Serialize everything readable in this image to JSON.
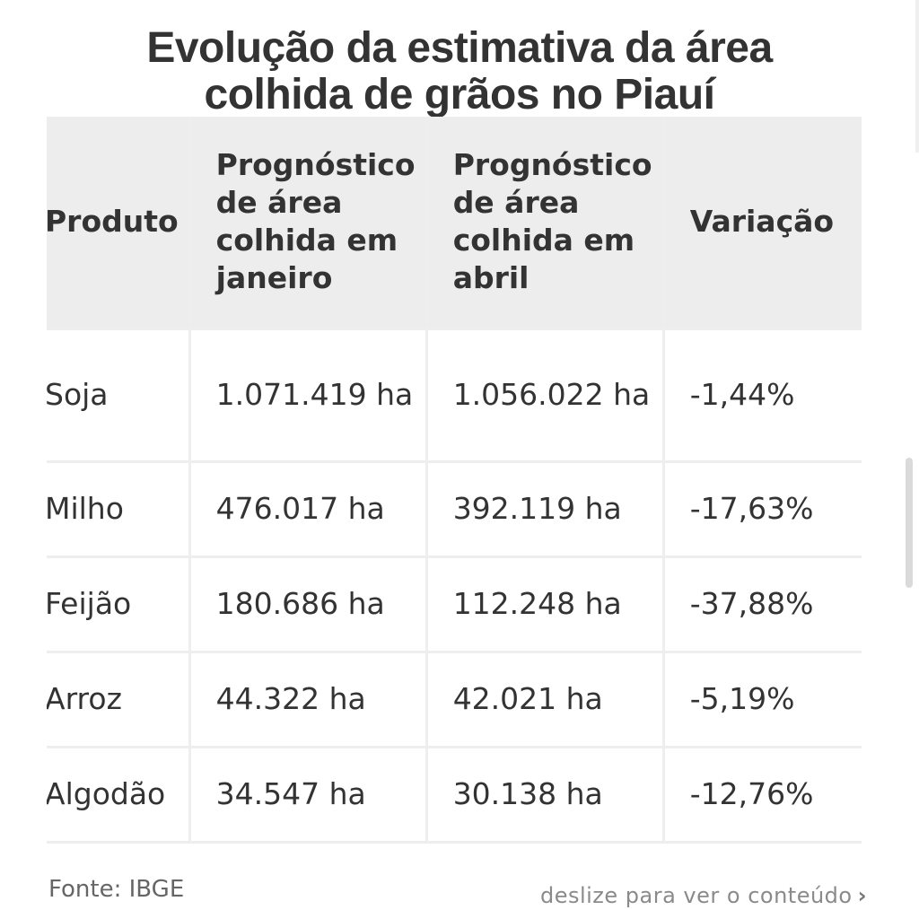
{
  "title": {
    "line1": "Evolução da estimativa da área",
    "line2": "colhida de grãos no Piauí"
  },
  "table": {
    "headers": [
      "Produto",
      "Prognóstico de área colhida em janeiro",
      "Prognóstico de área colhida em abril",
      "Variação"
    ],
    "rows": [
      [
        "Soja",
        "1.071.419 ha",
        "1.056.022 ha",
        "-1,44%"
      ],
      [
        "Milho",
        "476.017 ha",
        "392.119 ha",
        "-17,63%"
      ],
      [
        "Feijão",
        "180.686 ha",
        "112.248 ha",
        "-37,88%"
      ],
      [
        "Arroz",
        "44.322 ha",
        "42.021 ha",
        "-5,19%"
      ],
      [
        "Algodão",
        "34.547 ha",
        "30.138 ha",
        "-12,76%"
      ]
    ]
  },
  "footer": {
    "source": "Fonte: IBGE",
    "scroll_hint": "deslize para ver o conteúdo"
  },
  "icons": {
    "hint": "chevron-right-icon"
  }
}
